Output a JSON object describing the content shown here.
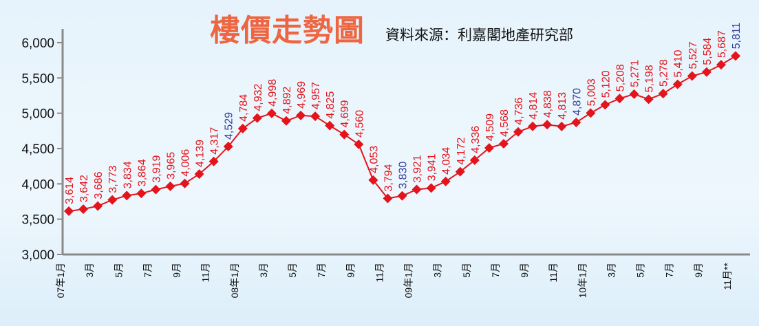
{
  "title": "樓價走勢圖",
  "source": "資料來源：利嘉閣地產研究部",
  "chart_data": {
    "type": "line",
    "title": "樓價走勢圖",
    "subtitle": "資料來源：利嘉閣地產研究部",
    "ylim": [
      3000,
      6000
    ],
    "yticks": [
      "3,000",
      "3,500",
      "4,000",
      "4,500",
      "5,000",
      "5,500",
      "6,000"
    ],
    "ytick_values": [
      3000,
      3500,
      4000,
      4500,
      5000,
      5500,
      6000
    ],
    "xtick_labels": [
      "07年1月",
      "3月",
      "5月",
      "7月",
      "9月",
      "11月",
      "08年1月",
      "3月",
      "5月",
      "7月",
      "9月",
      "11月",
      "09年1月",
      "3月",
      "5月",
      "7月",
      "9月",
      "11月",
      "10年1月",
      "3月",
      "5月",
      "7月",
      "9月",
      "11月**"
    ],
    "xtick_index": [
      0,
      2,
      4,
      6,
      8,
      10,
      12,
      14,
      16,
      18,
      20,
      22,
      24,
      26,
      28,
      30,
      32,
      34,
      36,
      38,
      40,
      42,
      44,
      46
    ],
    "series": [
      {
        "name": "樓價",
        "color": "#e3141b",
        "values": [
          3614,
          3642,
          3686,
          3773,
          3834,
          3864,
          3919,
          3965,
          4006,
          4139,
          4317,
          4529,
          4784,
          4932,
          4998,
          4892,
          4969,
          4957,
          4825,
          4699,
          4560,
          4053,
          3794,
          3830,
          3921,
          3941,
          4034,
          4172,
          4336,
          4509,
          4568,
          4736,
          4814,
          4838,
          4813,
          4870,
          5003,
          5120,
          5208,
          5271,
          5198,
          5278,
          5410,
          5527,
          5584,
          5687,
          5811
        ],
        "labels": [
          "3,614",
          "3,642",
          "3,686",
          "3,773",
          "3,834",
          "3,864",
          "3,919",
          "3,965",
          "4,006",
          "4,139",
          "4,317",
          "4,529",
          "4,784",
          "4,932",
          "4,998",
          "4,892",
          "4,969",
          "4,957",
          "4,825",
          "4,699",
          "4,560",
          "4,053",
          "3,794",
          "3,830",
          "3,921",
          "3,941",
          "4,034",
          "4,172",
          "4,336",
          "4,509",
          "4,568",
          "4,736",
          "4,814",
          "4,838",
          "4,813",
          "4,870",
          "5,003",
          "5,120",
          "5,208",
          "5,271",
          "5,198",
          "5,278",
          "5,410",
          "5,527",
          "5,584",
          "5,687",
          "5,811"
        ],
        "highlight_index": [
          11,
          23,
          35,
          46
        ],
        "highlight_color": "#2f3f9a"
      }
    ],
    "grid": false
  }
}
